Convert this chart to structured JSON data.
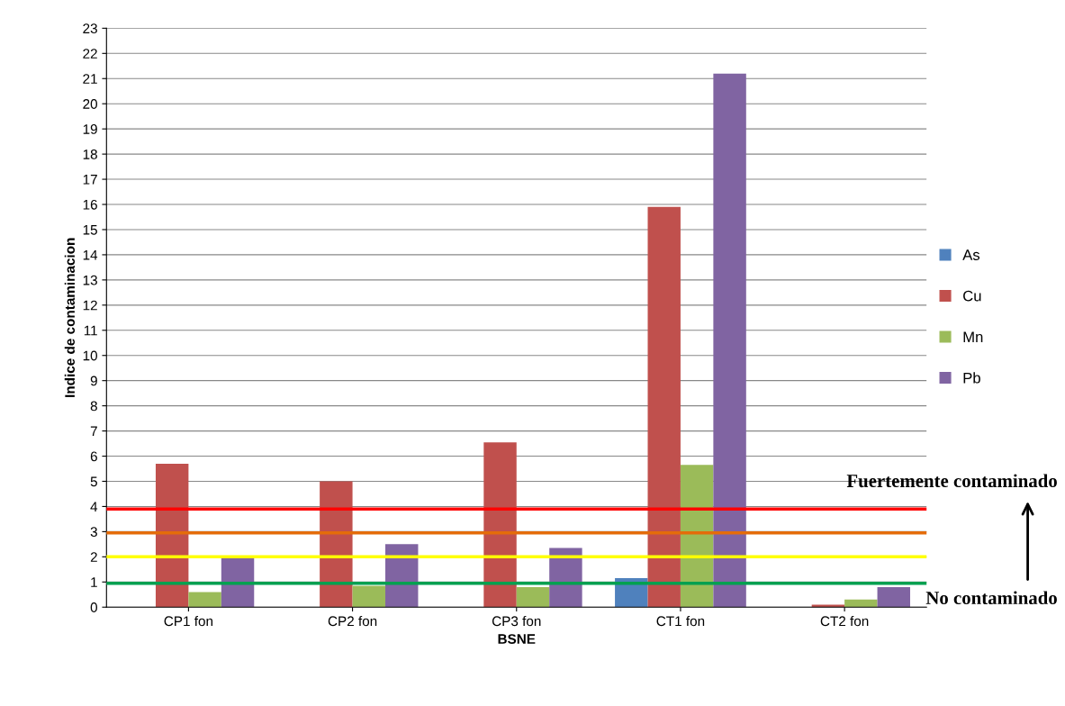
{
  "chart_data": {
    "type": "bar",
    "xlabel": "BSNE",
    "ylabel": "Indice de contaminacion",
    "categories": [
      "CP1 fon",
      "CP2 fon",
      "CP3 fon",
      "CT1 fon",
      "CT2 fon"
    ],
    "series": [
      {
        "name": "As",
        "color": "#4f81bd",
        "values": [
          0,
          0,
          0,
          1.15,
          0
        ]
      },
      {
        "name": "Cu",
        "color": "#c0504d",
        "values": [
          5.7,
          5.0,
          6.55,
          15.9,
          0.1
        ]
      },
      {
        "name": "Mn",
        "color": "#9bbb59",
        "values": [
          0.6,
          0.85,
          0.8,
          5.65,
          0.3
        ]
      },
      {
        "name": "Pb",
        "color": "#8064a2",
        "values": [
          1.95,
          2.5,
          2.35,
          21.2,
          0.8
        ]
      }
    ],
    "ylim": [
      0,
      23
    ],
    "yticks": [
      0,
      1,
      2,
      3,
      4,
      5,
      6,
      7,
      8,
      9,
      10,
      11,
      12,
      13,
      14,
      15,
      16,
      17,
      18,
      19,
      20,
      21,
      22,
      23
    ],
    "grid": "y",
    "legend": "right",
    "ref_lines": [
      {
        "axis": "y",
        "value": 3.9,
        "color": "#ff0000"
      },
      {
        "axis": "y",
        "value": 2.95,
        "color": "#e46c0a"
      },
      {
        "axis": "y",
        "value": 2.0,
        "color": "#ffff00"
      },
      {
        "axis": "y",
        "value": 0.95,
        "color": "#00a050"
      }
    ],
    "annotations": [
      "Fuertemente contaminado",
      "No contaminado"
    ]
  }
}
